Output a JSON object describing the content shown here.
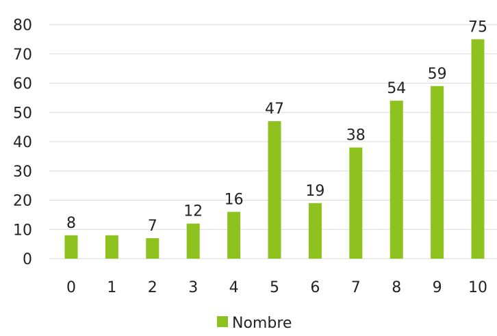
{
  "chart_data": {
    "type": "bar",
    "categories": [
      "0",
      "1",
      "2",
      "3",
      "4",
      "5",
      "6",
      "7",
      "8",
      "9",
      "10"
    ],
    "series": [
      {
        "name": "Nombre",
        "values": [
          8,
          8,
          7,
          12,
          16,
          47,
          19,
          38,
          54,
          59,
          75
        ],
        "color": "#8dc21f"
      }
    ],
    "data_labels": [
      "8",
      "",
      "7",
      "12",
      "16",
      "47",
      "19",
      "38",
      "54",
      "59",
      "75"
    ],
    "y_ticks": [
      "0",
      "10",
      "20",
      "30",
      "40",
      "50",
      "60",
      "70",
      "80"
    ],
    "ylim": [
      0,
      80
    ],
    "grid": true,
    "legend": "bottom-center",
    "title": "",
    "xlabel": "",
    "ylabel": ""
  }
}
